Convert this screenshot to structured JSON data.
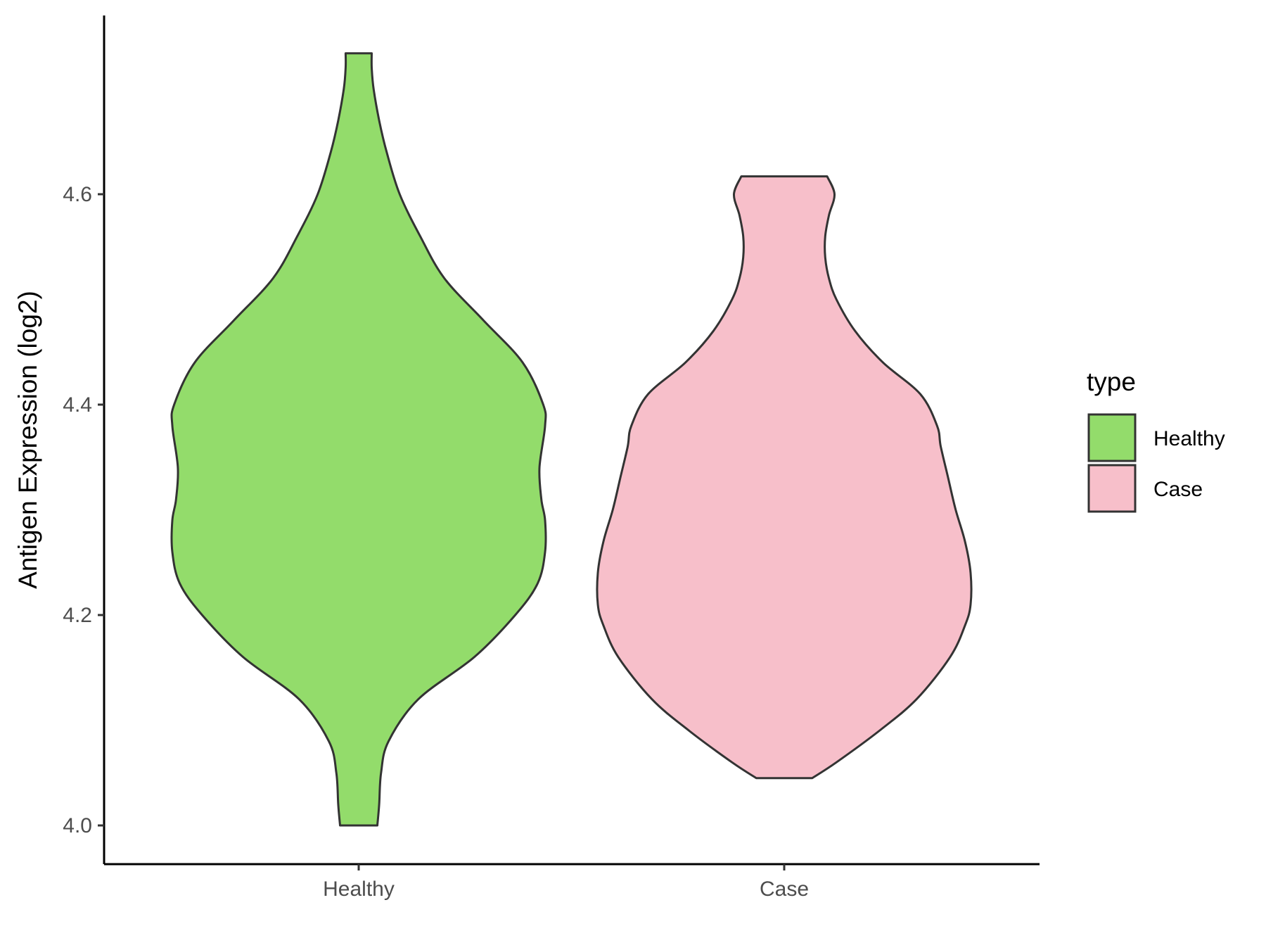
{
  "chart_data": {
    "type": "violin",
    "title": "",
    "xlabel": "",
    "ylabel": "Antigen Expression (log2)",
    "ylim": [
      3.96,
      4.77
    ],
    "yticks": [
      4.0,
      4.2,
      4.4,
      4.6
    ],
    "ytick_labels": [
      "4.0",
      "4.2",
      "4.4",
      "4.6"
    ],
    "categories": [
      "Healthy",
      "Case"
    ],
    "legend": {
      "title": "type",
      "position": "right",
      "entries": [
        "Healthy",
        "Case"
      ]
    },
    "colors": {
      "Healthy": "#93dc6b",
      "Case": "#f7bfca",
      "outline": "#333333"
    },
    "series": [
      {
        "name": "Healthy",
        "min": 4.0,
        "max": 4.734,
        "density_profile": [
          [
            4.0,
            0.1
          ],
          [
            4.02,
            0.11
          ],
          [
            4.05,
            0.12
          ],
          [
            4.08,
            0.16
          ],
          [
            4.12,
            0.32
          ],
          [
            4.16,
            0.62
          ],
          [
            4.2,
            0.84
          ],
          [
            4.23,
            0.96
          ],
          [
            4.26,
            1.0
          ],
          [
            4.29,
            1.0
          ],
          [
            4.31,
            0.98
          ],
          [
            4.34,
            0.97
          ],
          [
            4.38,
            1.0
          ],
          [
            4.4,
            0.99
          ],
          [
            4.44,
            0.88
          ],
          [
            4.48,
            0.67
          ],
          [
            4.52,
            0.46
          ],
          [
            4.56,
            0.33
          ],
          [
            4.6,
            0.22
          ],
          [
            4.64,
            0.15
          ],
          [
            4.67,
            0.11
          ],
          [
            4.7,
            0.08
          ],
          [
            4.72,
            0.07
          ],
          [
            4.734,
            0.07
          ]
        ]
      },
      {
        "name": "Case",
        "min": 4.045,
        "max": 4.617,
        "density_profile": [
          [
            4.045,
            0.15
          ],
          [
            4.06,
            0.28
          ],
          [
            4.09,
            0.51
          ],
          [
            4.12,
            0.71
          ],
          [
            4.16,
            0.89
          ],
          [
            4.19,
            0.97
          ],
          [
            4.21,
            1.0
          ],
          [
            4.24,
            1.0
          ],
          [
            4.27,
            0.97
          ],
          [
            4.3,
            0.92
          ],
          [
            4.33,
            0.88
          ],
          [
            4.36,
            0.84
          ],
          [
            4.38,
            0.82
          ],
          [
            4.41,
            0.73
          ],
          [
            4.44,
            0.53
          ],
          [
            4.47,
            0.38
          ],
          [
            4.5,
            0.28
          ],
          [
            4.52,
            0.24
          ],
          [
            4.54,
            0.22
          ],
          [
            4.56,
            0.22
          ],
          [
            4.58,
            0.24
          ],
          [
            4.6,
            0.27
          ],
          [
            4.617,
            0.23
          ]
        ]
      }
    ]
  }
}
